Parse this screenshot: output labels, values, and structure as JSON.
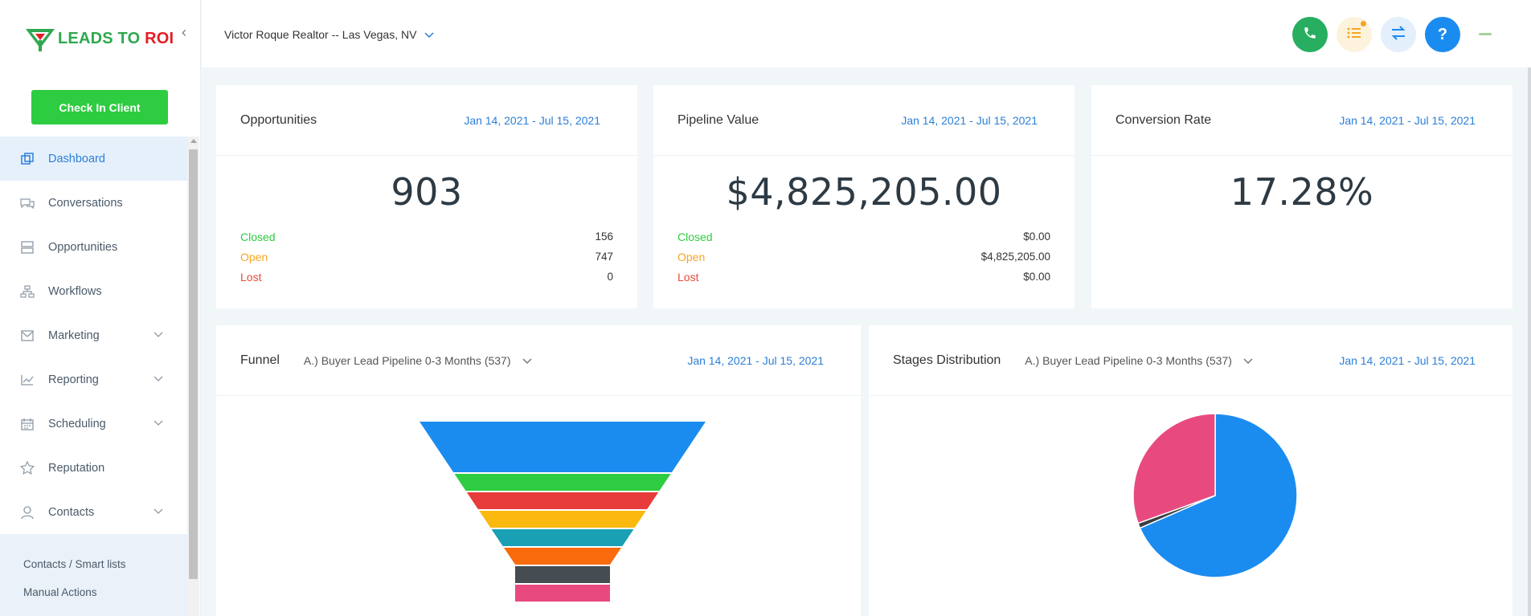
{
  "brand": {
    "logo_text_green": "LEADS TO ",
    "logo_text_red": "ROI",
    "colors": {
      "green": "#2fa84f",
      "red": "#e31e24",
      "accent": "#2b7fd6"
    }
  },
  "sidebar": {
    "checkin_label": "Check In Client",
    "items": [
      {
        "label": "Dashboard",
        "icon": "dashboard-icon",
        "active": true
      },
      {
        "label": "Conversations",
        "icon": "chat-icon"
      },
      {
        "label": "Opportunities",
        "icon": "stack-icon"
      },
      {
        "label": "Workflows",
        "icon": "workflow-icon"
      },
      {
        "label": "Marketing",
        "icon": "mail-icon",
        "expandable": true
      },
      {
        "label": "Reporting",
        "icon": "chart-icon",
        "expandable": true
      },
      {
        "label": "Scheduling",
        "icon": "calendar-icon",
        "expandable": true
      },
      {
        "label": "Reputation",
        "icon": "star-icon"
      },
      {
        "label": "Contacts",
        "icon": "person-icon",
        "expandable": true
      }
    ],
    "subitems": [
      "Contacts / Smart lists",
      "Manual Actions"
    ]
  },
  "header": {
    "account": "Victor Roque Realtor -- Las Vegas, NV",
    "help_label": "?",
    "buttons": [
      "phone-icon",
      "tasks-icon",
      "switch-icon",
      "help-icon"
    ]
  },
  "cards": {
    "opportunities": {
      "title": "Opportunities",
      "date": "Jan 14, 2021 - Jul 15, 2021",
      "value": "903",
      "closed_label": "Closed",
      "closed": "156",
      "open_label": "Open",
      "open": "747",
      "lost_label": "Lost",
      "lost": "0"
    },
    "pipeline": {
      "title": "Pipeline Value",
      "date": "Jan 14, 2021 - Jul 15, 2021",
      "value": "$4,825,205.00",
      "closed_label": "Closed",
      "closed": "$0.00",
      "open_label": "Open",
      "open": "$4,825,205.00",
      "lost_label": "Lost",
      "lost": "$0.00"
    },
    "conversion": {
      "title": "Conversion Rate",
      "date": "Jan 14, 2021 - Jul 15, 2021",
      "value": "17.28%"
    },
    "funnel": {
      "title": "Funnel",
      "pipeline": "A.) Buyer Lead Pipeline 0-3 Months (537)",
      "date": "Jan 14, 2021 - Jul 15, 2021"
    },
    "stages": {
      "title": "Stages Distribution",
      "pipeline": "A.) Buyer Lead Pipeline 0-3 Months (537)",
      "date": "Jan 14, 2021 - Jul 15, 2021"
    }
  },
  "chart_data": [
    {
      "type": "funnel",
      "colors": [
        "#1a8cf0",
        "#2ecc40",
        "#e83b3b",
        "#fbb80f",
        "#1aa0b5",
        "#f96b0c",
        "#454c52",
        "#e84a7f"
      ],
      "values": [
        1,
        1,
        1,
        1,
        1,
        1,
        1,
        1
      ],
      "note_values": "relative stage shares not labeled"
    },
    {
      "type": "pie",
      "slices": [
        {
          "value": 68.5,
          "color": "#1a8cf0"
        },
        {
          "value": 1.0,
          "color": "#3a3f44"
        },
        {
          "value": 30.5,
          "color": "#e84a7f"
        }
      ]
    }
  ]
}
